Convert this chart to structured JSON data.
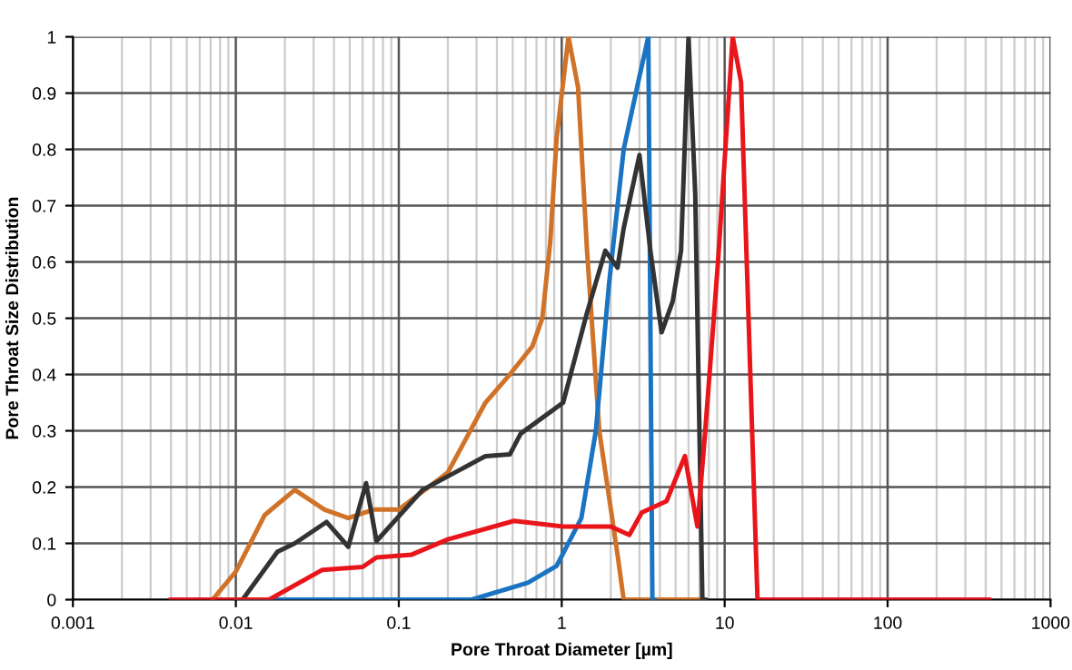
{
  "chart_data": {
    "type": "line",
    "xlabel": "Pore Throat Diameter [µm]",
    "ylabel": "Pore Throat Size Distribution",
    "log": "x",
    "grid": true,
    "marker": "none",
    "line_style": "solid",
    "xlim": [
      0.001,
      1000
    ],
    "xticks": [
      0.001,
      0.01,
      0.1,
      1,
      10,
      100,
      1000
    ],
    "ylim": [
      0,
      1
    ],
    "yticks": [
      0,
      0.1,
      0.2,
      0.3,
      0.4,
      0.5,
      0.6,
      0.7,
      0.8,
      0.9,
      1
    ],
    "series": [
      {
        "color": "#d07228",
        "x": [
          0.0072,
          0.01,
          0.015,
          0.023,
          0.035,
          0.049,
          0.07,
          0.1,
          0.2,
          0.34,
          0.48,
          0.66,
          0.76,
          0.85,
          0.93,
          1.1,
          1.26,
          1.43,
          1.7,
          2.2,
          2.4,
          7.5
        ],
        "values": [
          0,
          0.05,
          0.15,
          0.195,
          0.16,
          0.145,
          0.16,
          0.16,
          0.226,
          0.35,
          0.4,
          0.45,
          0.5,
          0.635,
          0.82,
          1.0,
          0.91,
          0.62,
          0.3,
          0.08,
          0,
          0
        ]
      },
      {
        "color": "#1a74c2",
        "x": [
          0.01,
          0.2,
          0.28,
          0.62,
          0.93,
          1.32,
          1.62,
          1.95,
          2.4,
          3.0,
          3.4,
          3.6,
          3.7
        ],
        "values": [
          0,
          0,
          0,
          0.03,
          0.06,
          0.145,
          0.3,
          0.56,
          0.8,
          0.93,
          1.0,
          0,
          0
        ]
      },
      {
        "color": "#333333",
        "x": [
          0.011,
          0.018,
          0.023,
          0.036,
          0.049,
          0.063,
          0.073,
          0.14,
          0.34,
          0.48,
          0.56,
          1.02,
          1.43,
          1.85,
          2.2,
          2.4,
          3.0,
          3.5,
          4.1,
          4.8,
          5.4,
          6.0,
          6.6,
          7.3,
          7.6
        ],
        "values": [
          0,
          0.085,
          0.1,
          0.138,
          0.094,
          0.207,
          0.104,
          0.195,
          0.255,
          0.258,
          0.295,
          0.35,
          0.51,
          0.62,
          0.59,
          0.66,
          0.79,
          0.62,
          0.475,
          0.53,
          0.62,
          1.0,
          0.72,
          0,
          0
        ]
      },
      {
        "color": "#e8161b",
        "x": [
          0.004,
          0.016,
          0.034,
          0.06,
          0.073,
          0.12,
          0.2,
          0.51,
          1.02,
          2.0,
          2.6,
          3.1,
          4.4,
          5.7,
          6.8,
          7.6,
          9.1,
          11.2,
          12.6,
          15.9,
          420
        ],
        "values": [
          0,
          0,
          0.053,
          0.058,
          0.075,
          0.08,
          0.107,
          0.14,
          0.13,
          0.13,
          0.115,
          0.155,
          0.175,
          0.255,
          0.13,
          0.3,
          0.6,
          1.0,
          0.92,
          0,
          0
        ]
      }
    ]
  }
}
